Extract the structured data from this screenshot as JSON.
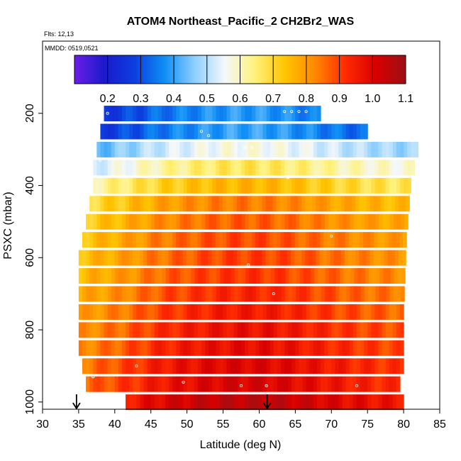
{
  "chart_data": {
    "type": "heatmap",
    "title": "ATOM4 Northeast_Pacific_2 CH2Br2_WAS",
    "flights_note": "Flts: 12,13",
    "dates_note": "MMDD: 0519,0521",
    "xlabel": "Latitude (deg N)",
    "ylabel": "PSXC (mbar)",
    "xlim": [
      30,
      85
    ],
    "ylim": [
      1020,
      0
    ],
    "x_ticks": [
      "30",
      "35",
      "40",
      "45",
      "50",
      "55",
      "60",
      "65",
      "70",
      "75",
      "80",
      "85"
    ],
    "y_ticks": [
      "200",
      "400",
      "600",
      "800",
      "1000"
    ],
    "colorbar": {
      "range": [
        0.1,
        1.1
      ],
      "tick_labels": [
        "0.2",
        "0.3",
        "0.4",
        "0.5",
        "0.6",
        "0.7",
        "0.8",
        "0.9",
        "1.0",
        "1.1"
      ],
      "stops": [
        "#6a1ee8",
        "#1a1acb",
        "#0b3fe0",
        "#0f8ff5",
        "#8fd0ff",
        "#f4f8fb",
        "#fff27a",
        "#ffc400",
        "#ff8800",
        "#ff2a00",
        "#d80000",
        "#9c0f14"
      ]
    },
    "arrows_latitude": [
      34.7,
      61.1
    ],
    "bands": [
      {
        "p": 200,
        "lat_min": 38.5,
        "lat_max": 68.5,
        "mean": 0.29
      },
      {
        "p": 250,
        "lat_min": 38.0,
        "lat_max": 75.0,
        "mean": 0.3
      },
      {
        "p": 300,
        "lat_min": 37.5,
        "lat_max": 82.0,
        "mean": 0.47
      },
      {
        "p": 350,
        "lat_min": 37.0,
        "lat_max": 81.5,
        "mean": 0.57
      },
      {
        "p": 400,
        "lat_min": 37.0,
        "lat_max": 81.0,
        "mean": 0.66
      },
      {
        "p": 450,
        "lat_min": 36.5,
        "lat_max": 80.8,
        "mean": 0.74
      },
      {
        "p": 500,
        "lat_min": 36.0,
        "lat_max": 80.6,
        "mean": 0.77
      },
      {
        "p": 550,
        "lat_min": 35.5,
        "lat_max": 80.4,
        "mean": 0.79
      },
      {
        "p": 600,
        "lat_min": 35.0,
        "lat_max": 80.3,
        "mean": 0.8
      },
      {
        "p": 650,
        "lat_min": 35.0,
        "lat_max": 80.2,
        "mean": 0.81
      },
      {
        "p": 700,
        "lat_min": 35.0,
        "lat_max": 80.1,
        "mean": 0.83
      },
      {
        "p": 750,
        "lat_min": 35.0,
        "lat_max": 80.0,
        "mean": 0.85
      },
      {
        "p": 800,
        "lat_min": 35.0,
        "lat_max": 80.0,
        "mean": 0.87
      },
      {
        "p": 850,
        "lat_min": 35.0,
        "lat_max": 80.0,
        "mean": 0.88
      },
      {
        "p": 900,
        "lat_min": 35.5,
        "lat_max": 80.0,
        "mean": 0.9
      },
      {
        "p": 950,
        "lat_min": 36.0,
        "lat_max": 79.5,
        "mean": 0.91
      },
      {
        "p": 1000,
        "lat_min": 41.5,
        "lat_max": 80.0,
        "mean": 0.95
      }
    ],
    "sample_points": [
      {
        "lat": 63.5,
        "p": 195
      },
      {
        "lat": 64.5,
        "p": 195
      },
      {
        "lat": 65.5,
        "p": 195
      },
      {
        "lat": 66.5,
        "p": 195
      },
      {
        "lat": 39.0,
        "p": 200
      },
      {
        "lat": 52.0,
        "p": 250
      },
      {
        "lat": 53.0,
        "p": 262
      },
      {
        "lat": 58.0,
        "p": 295
      },
      {
        "lat": 59.0,
        "p": 295
      },
      {
        "lat": 38.0,
        "p": 330
      },
      {
        "lat": 64.0,
        "p": 378
      },
      {
        "lat": 70.0,
        "p": 540
      },
      {
        "lat": 58.5,
        "p": 620
      },
      {
        "lat": 62.0,
        "p": 700
      },
      {
        "lat": 43.0,
        "p": 900
      },
      {
        "lat": 49.5,
        "p": 945
      },
      {
        "lat": 57.5,
        "p": 955
      },
      {
        "lat": 61.0,
        "p": 955
      },
      {
        "lat": 73.5,
        "p": 955
      },
      {
        "lat": 37.0,
        "p": 930
      }
    ]
  }
}
